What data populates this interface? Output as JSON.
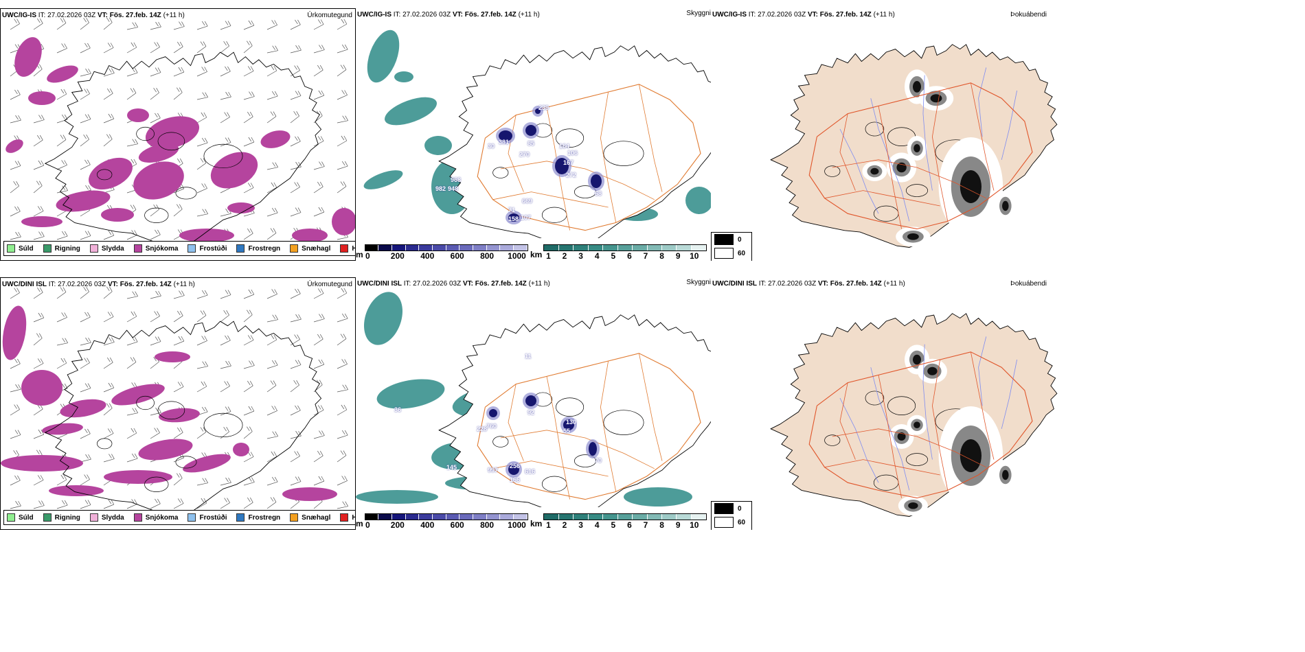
{
  "colors": {
    "precip_type": "#b5449e",
    "cloud_teal": "#2e8b87",
    "cloud_teal_light": "#7fc3be",
    "land_fill": "#f1ddcb",
    "roads": "#e07a30",
    "rivers": "#7f8cf0",
    "coast": "#000000",
    "cloud_base_dark": "#16166e",
    "fog_dark": "#111111"
  },
  "rows": [
    {
      "model": "UWC/IG-IS",
      "it_label": "IT:",
      "it_value": "27.02.2026 03Z",
      "vt_label": "VT:",
      "vt_value": "Fös. 27.feb. 14Z",
      "lead": "(+11 h)",
      "panels": [
        {
          "title": "Úrkomutegund"
        },
        {
          "title": "Skyggni"
        },
        {
          "title": "Þokuábendi"
        }
      ],
      "peaks": [
        "239",
        "381",
        "85",
        "30",
        "270",
        "164",
        "106",
        "167",
        "272",
        "968",
        "982",
        "948",
        "68",
        "669",
        "71",
        "158",
        "107"
      ]
    },
    {
      "model": "UWC/DINI ISL",
      "it_label": "IT:",
      "it_value": "27.02.2026 03Z",
      "vt_label": "VT:",
      "vt_value": "Fös. 27.feb. 14Z",
      "lead": "(+11 h)",
      "panels": [
        {
          "title": "Úrkomutegund"
        },
        {
          "title": "Skyggni"
        },
        {
          "title": "Þokuábendi"
        }
      ],
      "peaks": [
        "92",
        "760",
        "228",
        "130",
        "55",
        "70",
        "997",
        "256",
        "616",
        "166",
        "145",
        "36",
        "11"
      ]
    }
  ],
  "precip_legend": [
    {
      "label": "Súld",
      "color": "#90ee90"
    },
    {
      "label": "Rigning",
      "color": "#3a9a6a"
    },
    {
      "label": "Slydda",
      "color": "#f0b0d8"
    },
    {
      "label": "Snjókoma",
      "color": "#b5449e"
    },
    {
      "label": "Frostúði",
      "color": "#8ec1ee"
    },
    {
      "label": "Frostregn",
      "color": "#2f78c0"
    },
    {
      "label": "Snæhagl",
      "color": "#f3a020"
    },
    {
      "label": "Haglél",
      "color": "#e02020"
    }
  ],
  "cloud_base_bar": {
    "unit": "m",
    "ticks": [
      "0",
      "200",
      "400",
      "600",
      "800",
      "1000"
    ],
    "colors": [
      "#000000",
      "#0a0a4a",
      "#15157a",
      "#2a2a8e",
      "#3a3a9c",
      "#4a4aa8",
      "#5a5ab2",
      "#6a6abb",
      "#7f7fc6",
      "#9494d0",
      "#aaaadb",
      "#c2c2e6"
    ]
  },
  "visibility_bar": {
    "unit": "km",
    "ticks": [
      "1",
      "2",
      "3",
      "4",
      "5",
      "6",
      "7",
      "8",
      "9",
      "10"
    ],
    "colors": [
      "#1f6b67",
      "#267570",
      "#2e807a",
      "#378b84",
      "#45958e",
      "#57a09a",
      "#6aaca6",
      "#82bab5",
      "#9dcac6",
      "#b9dad7",
      "#e6f2f1"
    ]
  },
  "fog_legend": [
    {
      "label": "0",
      "color": "#000000"
    },
    {
      "label": "60",
      "color": "#ffffff"
    }
  ]
}
